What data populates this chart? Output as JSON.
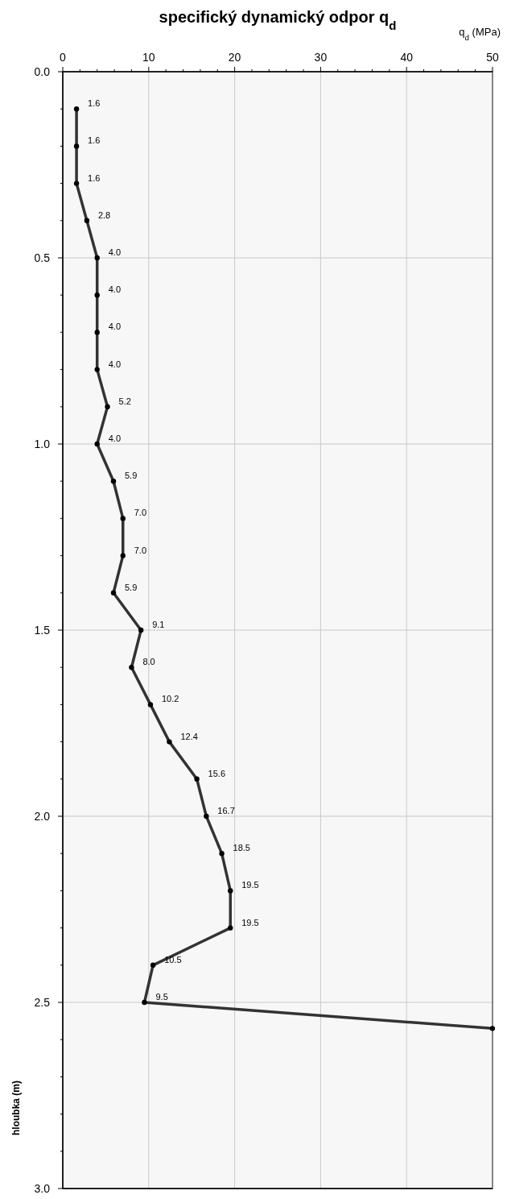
{
  "chart_data": {
    "type": "line",
    "orientation": "horizontal",
    "title": "specifický dynamický odpor q$_{d}$",
    "xlabel": "q$_{d}$ (MPa)",
    "ylabel": "hloubka (m)",
    "x": [
      0.1,
      0.2,
      0.3,
      0.4,
      0.5,
      0.6,
      0.7,
      0.8,
      0.9,
      1.0,
      1.1,
      1.2,
      1.3,
      1.4,
      1.5,
      1.6,
      1.7,
      1.8,
      1.9,
      2.0,
      2.1,
      2.2,
      2.3,
      2.4,
      2.5,
      2.57
    ],
    "series": [
      {
        "color": "#333333",
        "values": [
          1.6,
          1.6,
          1.6,
          2.8,
          4.0,
          4.0,
          4.0,
          4.0,
          5.2,
          4.0,
          5.9,
          7.0,
          7.0,
          5.9,
          9.1,
          8.0,
          10.2,
          12.4,
          15.6,
          16.7,
          18.5,
          19.5,
          19.5,
          10.5,
          9.5,
          50
        ],
        "value_labels": [
          "1.6",
          "1.6",
          "1.6",
          "2.8",
          "4.0",
          "4.0",
          "4.0",
          "4.0",
          "5.2",
          "4.0",
          "5.9",
          "7.0",
          "7.0",
          "5.9",
          "9.1",
          "8.0",
          "10.2",
          "12.4",
          "15.6",
          "16.7",
          "18.5",
          "19.5",
          "19.5",
          "10.5",
          "9.5",
          null
        ]
      }
    ],
    "xlim": [
      0,
      50
    ],
    "xticks": [
      0,
      {
        "value": 2,
        "label": null
      },
      {
        "value": 4,
        "label": null
      },
      {
        "value": 6,
        "label": null
      },
      {
        "value": 8,
        "label": null
      },
      10,
      {
        "value": 12,
        "label": null
      },
      {
        "value": 14,
        "label": null
      },
      {
        "value": 16,
        "label": null
      },
      {
        "value": 18,
        "label": null
      },
      20,
      {
        "value": 22,
        "label": null
      },
      {
        "value": 24,
        "label": null
      },
      {
        "value": 26,
        "label": null
      },
      {
        "value": 28,
        "label": null
      },
      30,
      {
        "value": 32,
        "label": null
      },
      {
        "value": 34,
        "label": null
      },
      {
        "value": 36,
        "label": null
      },
      {
        "value": 38,
        "label": null
      },
      40,
      {
        "value": 42,
        "label": null
      },
      {
        "value": 44,
        "label": null
      },
      {
        "value": 46,
        "label": null
      },
      {
        "value": 48,
        "label": null
      },
      50
    ],
    "ylim": [
      3.0,
      0.0
    ],
    "yticks": [
      {
        "value": 0,
        "label": "0.0"
      },
      {
        "value": 0.1,
        "label": null
      },
      {
        "value": 0.2,
        "label": null
      },
      {
        "value": 0.3,
        "label": null
      },
      {
        "value": 0.4,
        "label": null
      },
      {
        "value": 0.5,
        "label": "0.5"
      },
      {
        "value": 0.6,
        "label": null
      },
      {
        "value": 0.7,
        "label": null
      },
      {
        "value": 0.8,
        "label": null
      },
      {
        "value": 0.9,
        "label": null
      },
      {
        "value": 1,
        "label": "1.0"
      },
      {
        "value": 1.1,
        "label": null
      },
      {
        "value": 1.2,
        "label": null
      },
      {
        "value": 1.3,
        "label": null
      },
      {
        "value": 1.4,
        "label": null
      },
      {
        "value": 1.5,
        "label": "1.5"
      },
      {
        "value": 1.6,
        "label": null
      },
      {
        "value": 1.7,
        "label": null
      },
      {
        "value": 1.8,
        "label": null
      },
      {
        "value": 1.9,
        "label": null
      },
      {
        "value": 2,
        "label": "2.0"
      },
      {
        "value": 2.1,
        "label": null
      },
      {
        "value": 2.2,
        "label": null
      },
      {
        "value": 2.3,
        "label": null
      },
      {
        "value": 2.4,
        "label": null
      },
      {
        "value": 2.5,
        "label": "2.5"
      },
      {
        "value": 2.6,
        "label": null
      },
      {
        "value": 2.7,
        "label": null
      },
      {
        "value": 2.8,
        "label": null
      },
      {
        "value": 2.9,
        "label": null
      },
      {
        "value": 3,
        "label": "3.0"
      }
    ],
    "grid": true,
    "marker": "circle",
    "line_style": "solid"
  }
}
